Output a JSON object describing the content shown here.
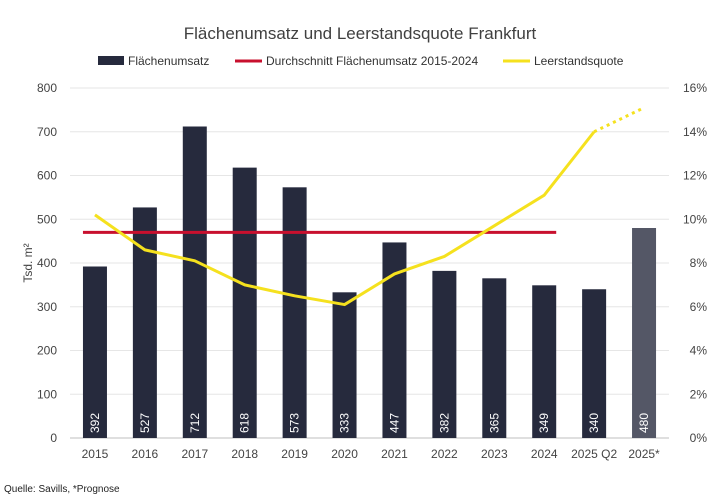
{
  "chart_data": {
    "type": "bar",
    "title": "Flächenumsatz und Leerstandsquote Frankfurt",
    "ylabel": "Tsd. m²",
    "xlabel": "",
    "categories": [
      "2015",
      "2016",
      "2017",
      "2018",
      "2019",
      "2020",
      "2021",
      "2022",
      "2023",
      "2024",
      "2025 Q2",
      "2025*"
    ],
    "ylim": [
      0,
      800
    ],
    "yticks": [
      "0",
      "100",
      "200",
      "300",
      "400",
      "500",
      "600",
      "700",
      "800"
    ],
    "y2lim": [
      0,
      16
    ],
    "y2ticks": [
      "0%",
      "2%",
      "4%",
      "6%",
      "8%",
      "10%",
      "12%",
      "14%",
      "16%"
    ],
    "grid": true,
    "legend_position": "top",
    "series": [
      {
        "name": "Flächenumsatz",
        "kind": "bar",
        "color": "#262a3d",
        "forecast_color": "#545766",
        "values": [
          392,
          527,
          712,
          618,
          573,
          333,
          447,
          382,
          365,
          349,
          340,
          480
        ],
        "labels": [
          "392",
          "527",
          "712",
          "618",
          "573",
          "333",
          "447",
          "382",
          "365",
          "349",
          "340",
          "480"
        ]
      },
      {
        "name": "Durchschnitt Flächenumsatz 2015-2024",
        "kind": "line",
        "color": "#c8102e",
        "value": 470,
        "range": [
          "2015",
          "2024"
        ]
      },
      {
        "name": "Leerstandsquote",
        "kind": "line",
        "axis": "right",
        "color": "#f5e11e",
        "values": [
          10.2,
          8.6,
          8.1,
          7.0,
          6.5,
          6.1,
          7.5,
          8.3,
          9.7,
          11.1,
          14.0,
          15.1
        ],
        "forecast_from_index": 10
      }
    ]
  },
  "source": "Quelle: Savills, *Prognose"
}
